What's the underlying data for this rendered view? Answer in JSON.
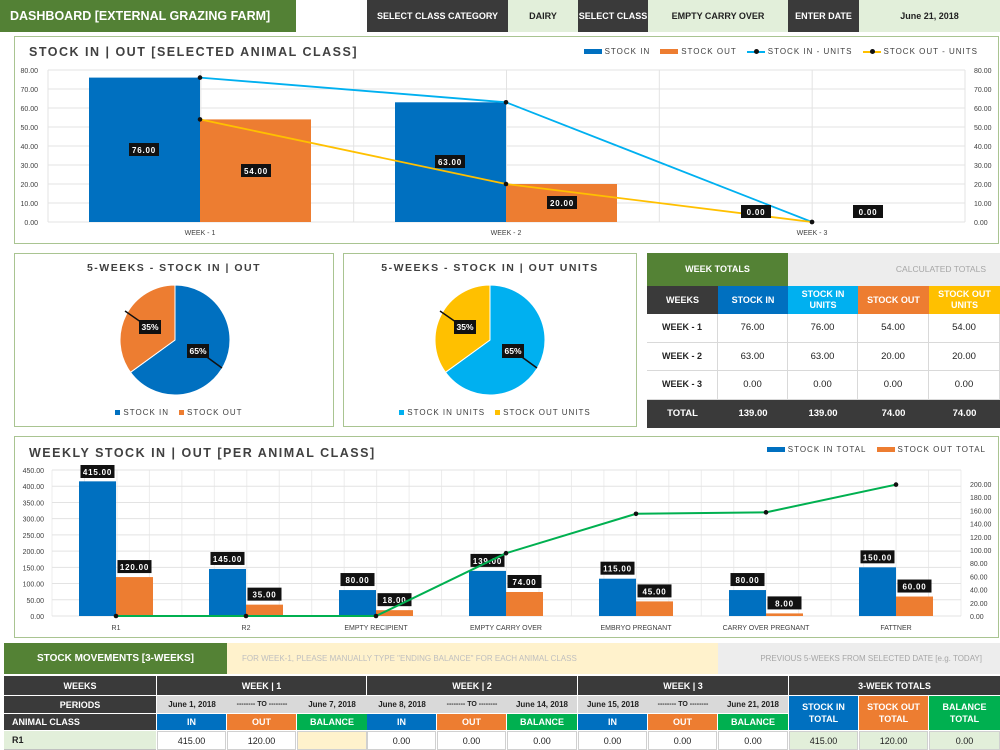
{
  "header": {
    "title": "DASHBOARD [EXTERNAL GRAZING FARM]",
    "category_label": "SELECT CLASS CATEGORY",
    "category_value": "DAIRY",
    "class_label": "SELECT CLASS",
    "class_value": "EMPTY CARRY OVER",
    "date_label": "ENTER DATE",
    "date_value": "June 21, 2018"
  },
  "chart1": {
    "title": "STOCK IN | OUT [SELECTED ANIMAL CLASS]",
    "legend": [
      "STOCK IN",
      "STOCK OUT",
      "STOCK IN - UNITS",
      "STOCK OUT - UNITS"
    ],
    "y_ticks": [
      "80.00",
      "70.00",
      "60.00",
      "50.00",
      "40.00",
      "30.00",
      "20.00",
      "10.00",
      "0.00"
    ],
    "bar_labels_in": [
      "76.00",
      "63.00",
      "0.00"
    ],
    "bar_labels_out": [
      "54.00",
      "20.00",
      "0.00"
    ]
  },
  "pie1": {
    "title": "5-WEEKS - STOCK IN | OUT",
    "label_a": "35%",
    "label_b": "65%",
    "legend": [
      "STOCK IN",
      "STOCK OUT"
    ]
  },
  "pie2": {
    "title": "5-WEEKS - STOCK IN | OUT UNITS",
    "label_a": "35%",
    "label_b": "65%",
    "legend": [
      "STOCK IN UNITS",
      "STOCK OUT UNITS"
    ]
  },
  "week_totals": {
    "title": "WEEK TOTALS",
    "subtitle": "CALCULATED TOTALS",
    "headers": [
      "WEEKS",
      "STOCK IN",
      "STOCK IN UNITS",
      "STOCK  OUT",
      "STOCK OUT UNITS"
    ],
    "rows": [
      [
        "WEEK - 1",
        "76.00",
        "76.00",
        "54.00",
        "54.00"
      ],
      [
        "WEEK - 2",
        "63.00",
        "63.00",
        "20.00",
        "20.00"
      ],
      [
        "WEEK - 3",
        "0.00",
        "0.00",
        "0.00",
        "0.00"
      ],
      [
        "TOTAL",
        "139.00",
        "139.00",
        "74.00",
        "74.00"
      ]
    ]
  },
  "chart2": {
    "title": "WEEKLY STOCK IN | OUT [PER ANIMAL CLASS]",
    "legend": [
      "STOCK IN TOTAL",
      "STOCK OUT TOTAL"
    ],
    "y_ticks_left": [
      "450.00",
      "400.00",
      "350.00",
      "300.00",
      "250.00",
      "200.00",
      "150.00",
      "100.00",
      "50.00",
      "0.00"
    ],
    "y_ticks_right": [
      "200.00",
      "180.00",
      "160.00",
      "140.00",
      "120.00",
      "100.00",
      "80.00",
      "60.00",
      "40.00",
      "20.00",
      "0.00"
    ],
    "bar_labels_in": [
      "415.00",
      "145.00",
      "80.00",
      "139.00",
      "115.00",
      "80.00",
      "150.00"
    ],
    "bar_labels_out": [
      "120.00",
      "35.00",
      "18.00",
      "74.00",
      "45.00",
      "8.00",
      "60.00"
    ]
  },
  "stock_movements": {
    "title": "STOCK MOVEMENTS [3-WEEKS]",
    "note": "FOR WEEK-1, PLEASE MANUALLY TYPE \"ENDING BALANCE\" FOR EACH ANIMAL CLASS",
    "note2": "PREVIOUS 5-WEEKS FROM SELECTED DATE [e.g. TODAY]",
    "weeks_label": "WEEKS",
    "periods_label": "PERIODS",
    "animal_class_label": "ANIMAL CLASS",
    "week_headers": [
      "WEEK | 1",
      "WEEK | 2",
      "WEEK | 3"
    ],
    "totals_header": "3-WEEK TOTALS",
    "periods": [
      [
        "June 1, 2018",
        "-------- TO --------",
        "June 7, 2018"
      ],
      [
        "June 8, 2018",
        "-------- TO --------",
        "June 14, 2018"
      ],
      [
        "June 15, 2018",
        "-------- TO --------",
        "June 21, 2018"
      ]
    ],
    "sub": {
      "in": "IN",
      "out": "OUT",
      "balance": "BALANCE"
    },
    "total_heads": [
      "STOCK IN TOTAL",
      "STOCK OUT TOTAL",
      "BALANCE TOTAL"
    ],
    "row_r1": {
      "name": "R1",
      "w1": [
        "415.00",
        "120.00",
        ""
      ],
      "w2": [
        "0.00",
        "0.00",
        "0.00"
      ],
      "w3": [
        "0.00",
        "0.00",
        "0.00"
      ],
      "totals": [
        "415.00",
        "120.00",
        "0.00"
      ]
    }
  },
  "colors": {
    "blue": "#0070c0",
    "orange": "#ed7d31",
    "cyan": "#00b0f0",
    "gold": "#ffc000",
    "green": "#00b050",
    "darkgreen": "#538135"
  },
  "chart_data": [
    {
      "type": "bar",
      "title": "STOCK IN | OUT [SELECTED ANIMAL CLASS]",
      "categories": [
        "WEEK - 1",
        "WEEK - 2",
        "WEEK - 3"
      ],
      "series": [
        {
          "name": "STOCK IN",
          "values": [
            76,
            63,
            0
          ]
        },
        {
          "name": "STOCK OUT",
          "values": [
            54,
            20,
            0
          ]
        },
        {
          "name": "STOCK IN - UNITS",
          "values": [
            76,
            63,
            0
          ]
        },
        {
          "name": "STOCK OUT - UNITS",
          "values": [
            54,
            20,
            0
          ]
        }
      ],
      "ylim": [
        0,
        80
      ],
      "legend": "top-right",
      "grid": true
    },
    {
      "type": "pie",
      "title": "5-WEEKS - STOCK IN | OUT",
      "categories": [
        "STOCK IN",
        "STOCK OUT"
      ],
      "values": [
        65,
        35
      ]
    },
    {
      "type": "pie",
      "title": "5-WEEKS - STOCK IN | OUT UNITS",
      "categories": [
        "STOCK IN UNITS",
        "STOCK OUT UNITS"
      ],
      "values": [
        65,
        35
      ]
    },
    {
      "type": "bar",
      "title": "WEEKLY STOCK IN | OUT [PER ANIMAL CLASS]",
      "categories": [
        "R1",
        "R2",
        "EMPTY RECIPIENT",
        "EMPTY CARRY OVER",
        "EMBRYO PREGNANT",
        "CARRY OVER PREGNANT",
        "FATTNER"
      ],
      "series": [
        {
          "name": "STOCK IN TOTAL",
          "values": [
            415,
            145,
            80,
            139,
            115,
            80,
            150
          ]
        },
        {
          "name": "STOCK OUT TOTAL",
          "values": [
            120,
            35,
            18,
            74,
            45,
            8,
            60
          ]
        },
        {
          "values": [
            0,
            0,
            0,
            86,
            140,
            142,
            180
          ]
        }
      ],
      "ylim": [
        0,
        450
      ],
      "y2lim": [
        0,
        200
      ],
      "legend": "top-right",
      "grid": true
    }
  ]
}
